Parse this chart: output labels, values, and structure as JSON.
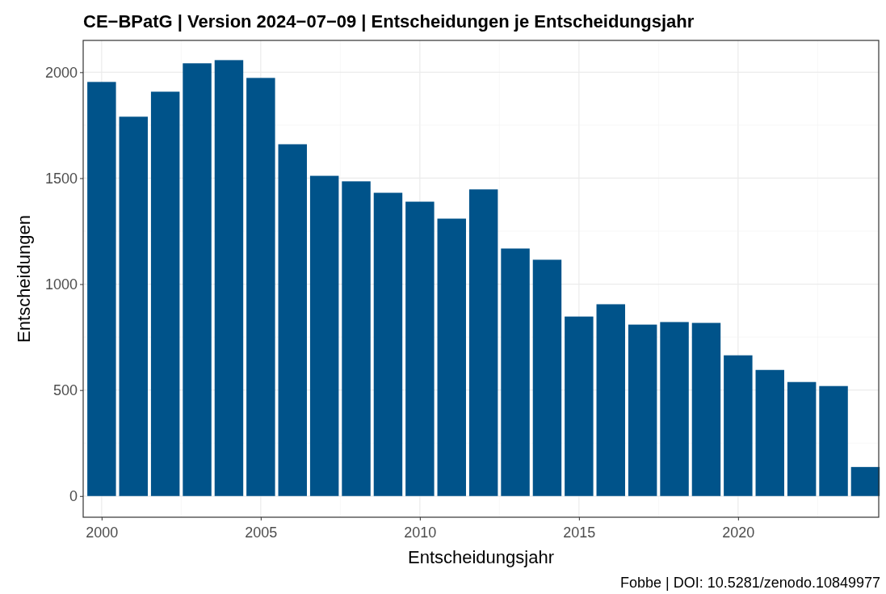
{
  "chart_data": {
    "type": "bar",
    "title": "CE−BPatG | Version 2024−07−09 | Entscheidungen je Entscheidungsjahr",
    "xlabel": "Entscheidungsjahr",
    "ylabel": "Entscheidungen",
    "annotations": [
      "Fobbe | DOI: 10.5281/zenodo.10849977"
    ],
    "x": [
      2000,
      2001,
      2002,
      2003,
      2004,
      2005,
      2006,
      2007,
      2008,
      2009,
      2010,
      2011,
      2012,
      2013,
      2014,
      2015,
      2016,
      2017,
      2018,
      2019,
      2020,
      2021,
      2022,
      2023,
      2024
    ],
    "values": [
      1954,
      1790,
      1908,
      2042,
      2057,
      1973,
      1660,
      1511,
      1485,
      1431,
      1389,
      1309,
      1447,
      1168,
      1115,
      847,
      905,
      809,
      821,
      817,
      664,
      595,
      538,
      519,
      137
    ],
    "color": "#00538a",
    "xlim": [
      1999.42,
      2024.42
    ],
    "xticks": [
      2000,
      2005,
      2010,
      2015,
      2020
    ],
    "ylim": [
      -100,
      2150
    ],
    "yticks": [
      0,
      500,
      1000,
      1500,
      2000
    ],
    "grid": true
  }
}
